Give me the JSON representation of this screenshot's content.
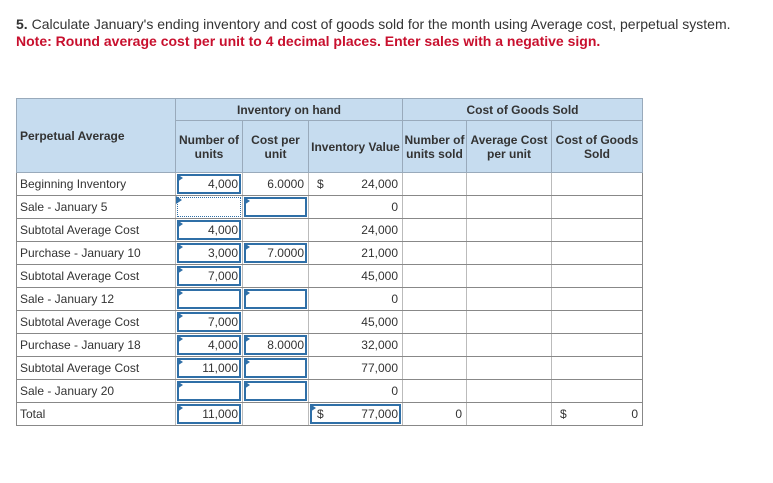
{
  "question": {
    "number": "5.",
    "text": "Calculate January's ending inventory and cost of goods sold for the month using Average cost, perpetual system.",
    "note": "Note: Round average cost per unit to 4 decimal places. Enter sales with a negative sign."
  },
  "table": {
    "header": {
      "row_label": "Perpetual Average",
      "group_on_hand": "Inventory on hand",
      "group_cogs": "Cost of Goods Sold",
      "columns": [
        "Number of units",
        "Cost per unit",
        "Inventory Value",
        "Number of units sold",
        "Average Cost per unit",
        "Cost of Goods Sold"
      ]
    },
    "rows": [
      {
        "label": "Beginning Inventory",
        "units": "4,000",
        "cost": "6.0000",
        "value_symbol": "$",
        "value": "24,000"
      },
      {
        "label": "Sale - January 5",
        "value": "0"
      },
      {
        "label": "Subtotal Average Cost",
        "units": "4,000",
        "value": "24,000"
      },
      {
        "label": "Purchase - January 10",
        "units": "3,000",
        "cost": "7.0000",
        "value": "21,000"
      },
      {
        "label": "Subtotal Average Cost",
        "units": "7,000",
        "value": "45,000"
      },
      {
        "label": "Sale - January 12",
        "value": "0"
      },
      {
        "label": "Subtotal Average Cost",
        "units": "7,000",
        "value": "45,000"
      },
      {
        "label": "Purchase - January 18",
        "units": "4,000",
        "cost": "8.0000",
        "value": "32,000"
      },
      {
        "label": "Subtotal Average Cost",
        "units": "11,000",
        "value": "77,000"
      },
      {
        "label": "Sale - January 20",
        "value": "0"
      },
      {
        "label": "Total",
        "units": "11,000",
        "value_symbol": "$",
        "value": "77,000",
        "sold": "0",
        "cogs_symbol": "$",
        "cogs": "0"
      }
    ]
  }
}
